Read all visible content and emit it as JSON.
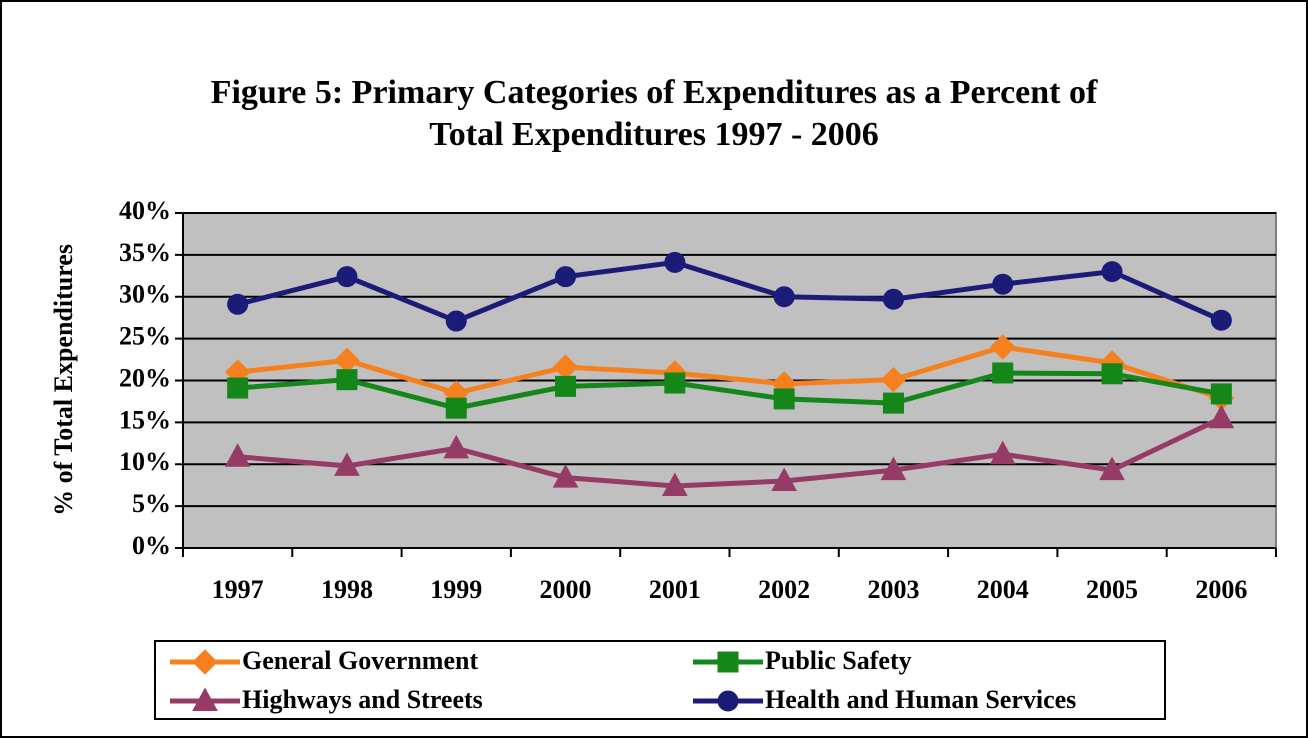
{
  "chart_data": {
    "type": "line",
    "title": "Figure 5:  Primary Categories of Expenditures as a Percent of Total Expenditures 1997 - 2006",
    "y_label": "% of Total Expenditures",
    "categories": [
      "1997",
      "1998",
      "1999",
      "2000",
      "2001",
      "2002",
      "2003",
      "2004",
      "2005",
      "2006"
    ],
    "series": [
      {
        "name": "General Government",
        "color": "#f7801e",
        "marker": "diamond",
        "values": [
          21.0,
          22.4,
          18.5,
          21.6,
          20.9,
          19.6,
          20.1,
          24.0,
          22.1,
          17.9
        ]
      },
      {
        "name": "Public Safety",
        "color": "#14861a",
        "marker": "square",
        "values": [
          19.1,
          20.1,
          16.7,
          19.3,
          19.7,
          17.8,
          17.3,
          20.9,
          20.8,
          18.4
        ]
      },
      {
        "name": "Highways and Streets",
        "color": "#963a66",
        "marker": "triangle",
        "values": [
          10.9,
          9.8,
          11.9,
          8.4,
          7.4,
          8.0,
          9.3,
          11.2,
          9.3,
          15.5
        ]
      },
      {
        "name": "Health and Human Services",
        "color": "#1b1c77",
        "marker": "circle",
        "values": [
          29.1,
          32.4,
          27.1,
          32.4,
          34.1,
          30.0,
          29.7,
          31.5,
          33.0,
          27.2
        ]
      }
    ],
    "ylim": [
      0,
      40
    ],
    "yticks": [
      {
        "value": 0,
        "label": "0%"
      },
      {
        "value": 5,
        "label": "5%"
      },
      {
        "value": 10,
        "label": "10%"
      },
      {
        "value": 15,
        "label": "15%"
      },
      {
        "value": 20,
        "label": "20%"
      },
      {
        "value": 25,
        "label": "25%"
      },
      {
        "value": 30,
        "label": "30%"
      },
      {
        "value": 35,
        "label": "35%"
      },
      {
        "value": 40,
        "label": "40%"
      }
    ],
    "grid": true,
    "plot_background": "#c0c0c0"
  }
}
